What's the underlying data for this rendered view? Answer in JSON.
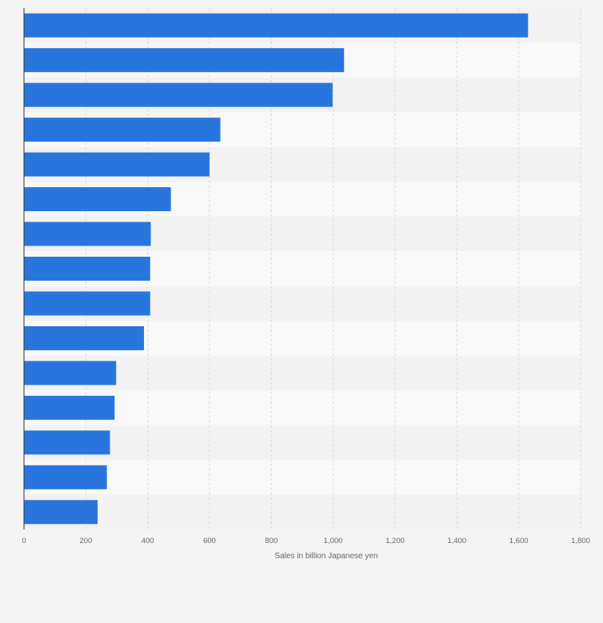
{
  "chart_data": {
    "type": "bar",
    "orientation": "horizontal",
    "categories": [
      "",
      "",
      "",
      "",
      "",
      "",
      "",
      "",
      "",
      "",
      "",
      "",
      "",
      "",
      ""
    ],
    "values": [
      1630,
      1035,
      998,
      635,
      600,
      475,
      410,
      408,
      408,
      388,
      298,
      293,
      278,
      268,
      238
    ],
    "title": "",
    "xlabel": "Sales in billion Japanese yen",
    "ylabel": "",
    "xlim": [
      0,
      1800
    ],
    "x_ticks": [
      0,
      200,
      400,
      600,
      800,
      1000,
      1200,
      1400,
      1600,
      1800
    ],
    "x_tick_labels": [
      "0",
      "200",
      "400",
      "600",
      "800",
      "1,000",
      "1,200",
      "1,400",
      "1,600",
      "1,800"
    ],
    "grid": "vertical dashed",
    "legend": "none"
  },
  "colors": {
    "bar": "#2876dd",
    "background": "#f4f4f4",
    "band_light": "#f8f8f8",
    "band_dark": "#f2f2f2",
    "grid": "#d8d8d8",
    "axis": "#333333",
    "text": "#666666"
  }
}
